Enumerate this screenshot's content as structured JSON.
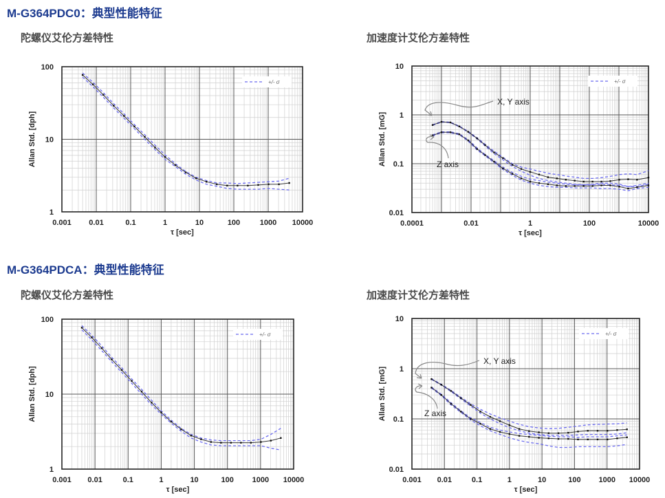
{
  "sections": [
    {
      "title": "M-G364PDC0：典型性能特征",
      "gyro_subtitle": "陀螺仪艾伦方差特性",
      "accel_subtitle": "加速度计艾伦方差特性"
    },
    {
      "title": "M-G364PDCA：典型性能特征",
      "gyro_subtitle": "陀螺仪艾伦方差特性",
      "accel_subtitle": "加速度计艾伦方差特性"
    }
  ],
  "colors": {
    "title": "#1b3a8f",
    "mean_line": "#333333",
    "sigma_band": "#6b6bef",
    "grid_major": "#555555",
    "grid_minor": "#cfcfcf"
  },
  "chart_data": [
    {
      "type": "line",
      "xscale": "log",
      "yscale": "log",
      "grid": true,
      "legend": "top-right",
      "xlabel": "τ  [sec]",
      "ylabel": "Allan Std.  [dph]",
      "xlim": [
        0.001,
        10000
      ],
      "ylim": [
        1,
        100
      ],
      "xticks": [
        "0.001",
        "0.01",
        "0.1",
        "1",
        "10",
        "100",
        "1000",
        "10000"
      ],
      "yticks": [
        "1",
        "10",
        "100"
      ],
      "legend_label": "+/- σ",
      "x": [
        0.004,
        0.008,
        0.016,
        0.032,
        0.064,
        0.128,
        0.256,
        0.512,
        1,
        2,
        4,
        8,
        16,
        32,
        64,
        128,
        256,
        512,
        1024,
        2048,
        4096
      ],
      "series": [
        {
          "values": [
            77,
            57,
            41,
            29,
            21,
            15,
            10.8,
            7.7,
            5.7,
            4.4,
            3.5,
            2.9,
            2.6,
            2.4,
            2.3,
            2.3,
            2.3,
            2.35,
            2.4,
            2.4,
            2.5
          ],
          "upper": [
            82,
            61,
            44,
            31,
            22.5,
            16,
            11.6,
            8.3,
            6.1,
            4.6,
            3.6,
            3.0,
            2.7,
            2.5,
            2.5,
            2.45,
            2.5,
            2.55,
            2.6,
            2.65,
            2.9
          ],
          "lower": [
            72,
            53,
            38,
            27,
            19.5,
            14,
            10,
            7.2,
            5.3,
            4.2,
            3.3,
            2.75,
            2.4,
            2.25,
            2.1,
            2.05,
            2.05,
            2.05,
            2.1,
            2.05,
            2.0
          ]
        }
      ],
      "annotations": []
    },
    {
      "type": "line",
      "xscale": "log",
      "yscale": "log",
      "grid": true,
      "legend": "top-right",
      "xlabel": "τ  [sec]",
      "ylabel": "Allan Std.  [mG]",
      "xlim": [
        0.0001,
        10000
      ],
      "ylim": [
        0.01,
        10
      ],
      "xticks": [
        "0.0001",
        "0.01",
        "1",
        "100",
        "10000"
      ],
      "yticks": [
        "0.01",
        "0.1",
        "1",
        "10"
      ],
      "legend_label": "+/- σ",
      "x": [
        0.0005,
        0.001,
        0.002,
        0.004,
        0.008,
        0.016,
        0.03,
        0.06,
        0.12,
        0.25,
        0.5,
        1,
        2,
        4,
        8,
        16,
        32,
        64,
        128,
        256,
        512,
        1024,
        2048,
        4096,
        10000
      ],
      "series": [
        {
          "values": [
            0.62,
            0.72,
            0.7,
            0.58,
            0.45,
            0.33,
            0.24,
            0.17,
            0.13,
            0.095,
            0.078,
            0.068,
            0.06,
            0.053,
            0.05,
            0.047,
            0.045,
            0.043,
            0.043,
            0.043,
            0.044,
            0.047,
            0.048,
            0.047,
            0.052
          ],
          "upper": [
            0.63,
            0.73,
            0.71,
            0.59,
            0.46,
            0.34,
            0.25,
            0.18,
            0.135,
            0.1,
            0.085,
            0.078,
            0.07,
            0.064,
            0.06,
            0.056,
            0.053,
            0.05,
            0.05,
            0.052,
            0.055,
            0.06,
            0.062,
            0.06,
            0.072
          ],
          "lower": [
            0.61,
            0.71,
            0.69,
            0.57,
            0.44,
            0.32,
            0.23,
            0.16,
            0.12,
            0.088,
            0.07,
            0.058,
            0.05,
            0.045,
            0.042,
            0.04,
            0.038,
            0.037,
            0.037,
            0.038,
            0.037,
            0.036,
            0.034,
            0.034,
            0.038
          ]
        },
        {
          "values": [
            0.38,
            0.44,
            0.44,
            0.4,
            0.3,
            0.2,
            0.15,
            0.11,
            0.08,
            0.062,
            0.05,
            0.043,
            0.04,
            0.038,
            0.036,
            0.035,
            0.035,
            0.035,
            0.035,
            0.036,
            0.036,
            0.034,
            0.031,
            0.033,
            0.036
          ],
          "upper": [
            0.39,
            0.45,
            0.45,
            0.41,
            0.31,
            0.21,
            0.155,
            0.115,
            0.085,
            0.066,
            0.055,
            0.048,
            0.045,
            0.042,
            0.04,
            0.038,
            0.037,
            0.037,
            0.038,
            0.04,
            0.04,
            0.038,
            0.034,
            0.036,
            0.04
          ],
          "lower": [
            0.37,
            0.43,
            0.43,
            0.39,
            0.29,
            0.19,
            0.145,
            0.105,
            0.076,
            0.058,
            0.046,
            0.04,
            0.036,
            0.034,
            0.033,
            0.033,
            0.032,
            0.032,
            0.032,
            0.031,
            0.031,
            0.03,
            0.028,
            0.031,
            0.033
          ]
        }
      ],
      "annotations": [
        "X, Y axis",
        "Z axis"
      ]
    },
    {
      "type": "line",
      "xscale": "log",
      "yscale": "log",
      "grid": true,
      "legend": "top-right",
      "xlabel": "τ  [sec]",
      "ylabel": "Allan Std.  [dph]",
      "xlim": [
        0.001,
        10000
      ],
      "ylim": [
        1,
        100
      ],
      "xticks": [
        "0.001",
        "0.01",
        "0.1",
        "1",
        "10",
        "100",
        "1000",
        "10000"
      ],
      "yticks": [
        "1",
        "10",
        "100"
      ],
      "legend_label": "+/- σ",
      "x": [
        0.004,
        0.008,
        0.016,
        0.032,
        0.064,
        0.128,
        0.256,
        0.512,
        1,
        2,
        4,
        8,
        16,
        32,
        64,
        128,
        256,
        512,
        1024,
        2048,
        4096
      ],
      "series": [
        {
          "values": [
            77,
            57,
            41,
            29,
            21,
            15,
            10.8,
            7.7,
            5.7,
            4.3,
            3.4,
            2.8,
            2.5,
            2.3,
            2.25,
            2.25,
            2.25,
            2.25,
            2.3,
            2.4,
            2.6
          ],
          "upper": [
            82,
            61,
            44,
            31,
            22.5,
            16,
            11.6,
            8.3,
            6.0,
            4.5,
            3.5,
            2.9,
            2.6,
            2.45,
            2.4,
            2.4,
            2.4,
            2.4,
            2.5,
            2.9,
            3.5
          ],
          "lower": [
            72,
            53,
            38,
            27,
            19.5,
            14,
            10,
            7.2,
            5.4,
            4.1,
            3.2,
            2.6,
            2.3,
            2.1,
            2.05,
            2.05,
            2.05,
            2.05,
            2.05,
            1.9,
            1.8
          ]
        }
      ],
      "annotations": []
    },
    {
      "type": "line",
      "xscale": "log",
      "yscale": "log",
      "grid": true,
      "legend": "top-right",
      "xlabel": "τ  [sec]",
      "ylabel": "Allan Std.  [mG]",
      "xlim": [
        0.001,
        10000
      ],
      "ylim": [
        0.01,
        10
      ],
      "xticks": [
        "0.001",
        "0.01",
        "0.1",
        "1",
        "10",
        "100",
        "1000",
        "10000"
      ],
      "yticks": [
        "0.01",
        "0.1",
        "1",
        "10"
      ],
      "legend_label": "+/- σ",
      "x": [
        0.004,
        0.008,
        0.016,
        0.032,
        0.064,
        0.128,
        0.256,
        0.512,
        1,
        2,
        4,
        8,
        16,
        32,
        64,
        128,
        256,
        512,
        1024,
        2048,
        4096
      ],
      "series": [
        {
          "values": [
            0.62,
            0.48,
            0.36,
            0.26,
            0.19,
            0.14,
            0.11,
            0.09,
            0.075,
            0.063,
            0.057,
            0.054,
            0.052,
            0.052,
            0.053,
            0.056,
            0.058,
            0.058,
            0.058,
            0.06,
            0.062
          ],
          "upper": [
            0.63,
            0.49,
            0.37,
            0.27,
            0.2,
            0.155,
            0.125,
            0.105,
            0.09,
            0.078,
            0.07,
            0.066,
            0.064,
            0.065,
            0.068,
            0.072,
            0.076,
            0.078,
            0.079,
            0.08,
            0.083
          ],
          "lower": [
            0.61,
            0.47,
            0.35,
            0.25,
            0.18,
            0.13,
            0.1,
            0.08,
            0.067,
            0.058,
            0.052,
            0.049,
            0.047,
            0.047,
            0.047,
            0.048,
            0.049,
            0.049,
            0.049,
            0.05,
            0.053
          ]
        },
        {
          "values": [
            0.42,
            0.3,
            0.2,
            0.14,
            0.1,
            0.08,
            0.063,
            0.055,
            0.05,
            0.046,
            0.044,
            0.042,
            0.041,
            0.04,
            0.04,
            0.039,
            0.039,
            0.039,
            0.039,
            0.041,
            0.043
          ],
          "upper": [
            0.43,
            0.31,
            0.21,
            0.145,
            0.105,
            0.085,
            0.068,
            0.06,
            0.055,
            0.051,
            0.049,
            0.047,
            0.045,
            0.044,
            0.044,
            0.043,
            0.044,
            0.044,
            0.044,
            0.046,
            0.048
          ],
          "lower": [
            0.41,
            0.29,
            0.19,
            0.135,
            0.095,
            0.073,
            0.058,
            0.049,
            0.042,
            0.037,
            0.034,
            0.032,
            0.029,
            0.027,
            0.027,
            0.028,
            0.028,
            0.028,
            0.028,
            0.029,
            0.031
          ]
        }
      ],
      "annotations": [
        "X, Y axis",
        "Z axis"
      ]
    }
  ]
}
